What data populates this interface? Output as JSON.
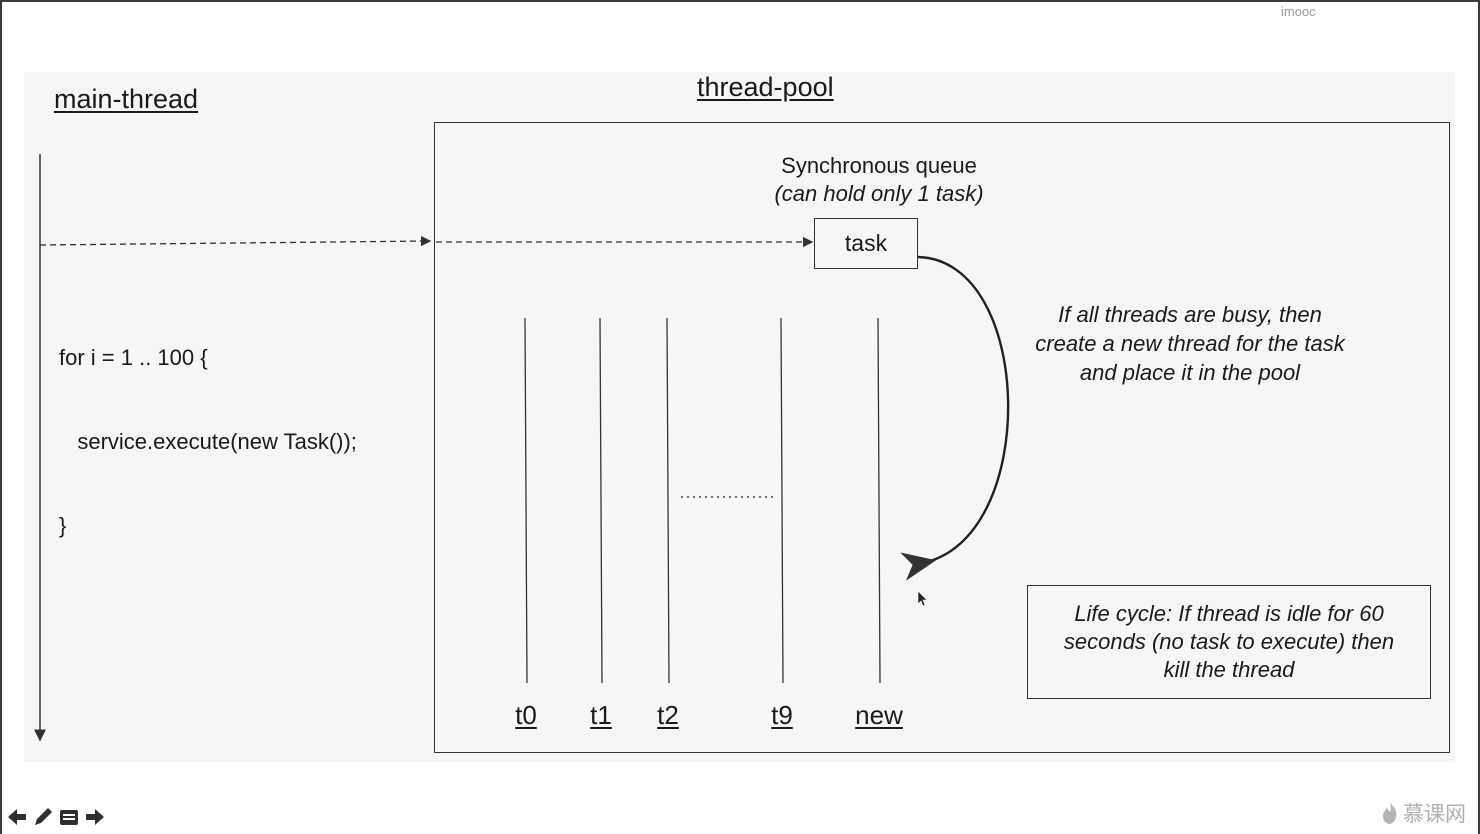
{
  "watermark": "imooc",
  "main_thread": {
    "title": "main-thread"
  },
  "thread_pool": {
    "title": "thread-pool"
  },
  "code": {
    "line1": "for i = 1 .. 100 {",
    "line2": "   service.execute(new Task());",
    "line3": "}"
  },
  "queue": {
    "title": "Synchronous queue",
    "subtitle": "(can hold only 1 task)",
    "task_label": "task"
  },
  "threads": [
    "t0",
    "t1",
    "t2",
    "t9",
    "new"
  ],
  "note": {
    "line1": "If all threads are busy, then",
    "line2": "create a new thread for the task",
    "line3": "and place it in the pool"
  },
  "lifecycle": {
    "line1": "Life cycle: If thread is idle for 60",
    "line2": "seconds (no task to execute) then",
    "line3": "kill the thread"
  },
  "toolbar": {
    "icons": [
      "arrow-left-icon",
      "pencil-icon",
      "menu-icon",
      "arrow-right-icon"
    ]
  },
  "brand": {
    "text": "慕课网",
    "icon": "flame-icon"
  },
  "colors": {
    "slide_background": "#f6f6f6",
    "line": "#333333"
  }
}
